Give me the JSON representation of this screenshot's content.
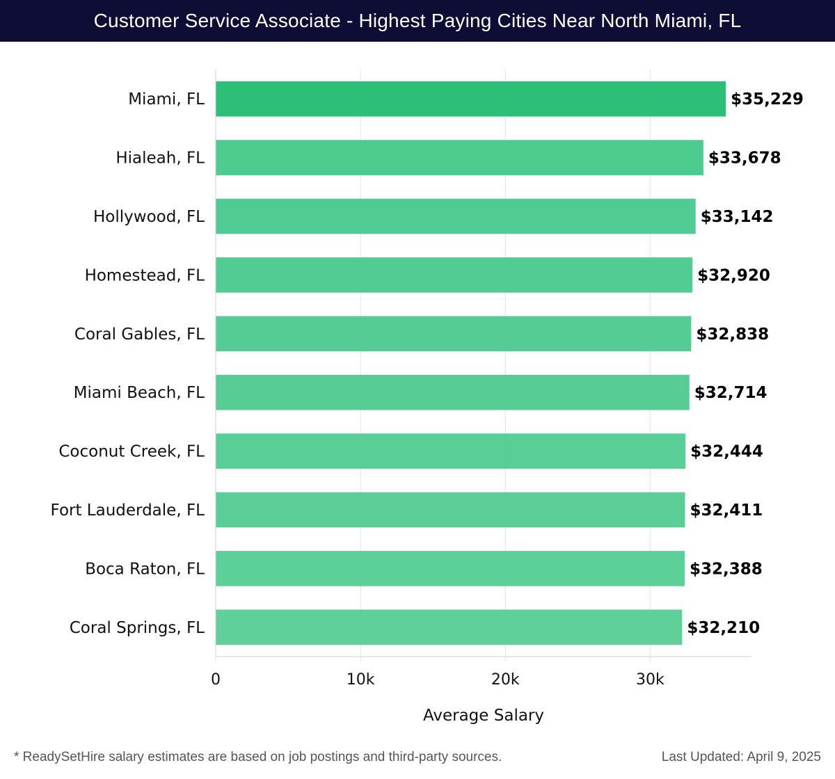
{
  "header": {
    "title": "Customer Service Associate - Highest Paying Cities Near North Miami, FL"
  },
  "chart_data": {
    "type": "bar",
    "orientation": "horizontal",
    "title": "Customer Service Associate - Highest Paying Cities Near North Miami, FL",
    "xlabel": "Average Salary",
    "ylabel": "",
    "xlim": [
      0,
      37000
    ],
    "x_ticks": [
      0,
      10000,
      20000,
      30000
    ],
    "x_tick_labels": [
      "0",
      "10k",
      "20k",
      "30k"
    ],
    "grid": true,
    "categories": [
      "Miami, FL",
      "Hialeah, FL",
      "Hollywood, FL",
      "Homestead, FL",
      "Coral Gables, FL",
      "Miami Beach, FL",
      "Coconut Creek, FL",
      "Fort Lauderdale, FL",
      "Boca Raton, FL",
      "Coral Springs, FL"
    ],
    "values": [
      35229,
      33678,
      33142,
      32920,
      32838,
      32714,
      32444,
      32411,
      32388,
      32210
    ],
    "value_labels": [
      "$35,229",
      "$33,678",
      "$33,142",
      "$32,920",
      "$32,838",
      "$32,714",
      "$32,444",
      "$32,411",
      "$32,388",
      "$32,210"
    ],
    "highlight_color": "#2bbf78",
    "bar_color": "#4cca8e"
  },
  "footer": {
    "note": "* ReadySetHire salary estimates are based on job postings and third-party sources.",
    "updated": "Last Updated: April 9, 2025"
  }
}
